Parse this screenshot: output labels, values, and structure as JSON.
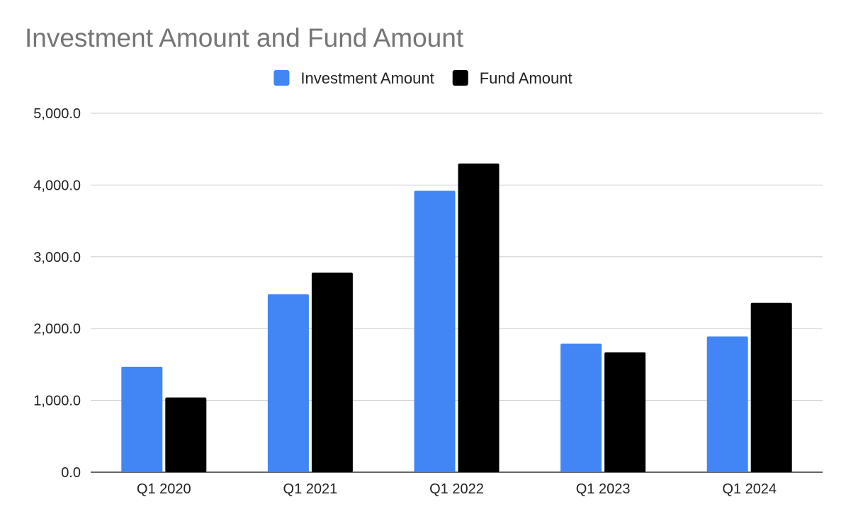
{
  "chart_data": {
    "type": "bar",
    "title": "Investment Amount and Fund Amount",
    "categories": [
      "Q1 2020",
      "Q1 2021",
      "Q1 2022",
      "Q1 2023",
      "Q1 2024"
    ],
    "series": [
      {
        "name": "Investment Amount",
        "color": "#4285f4",
        "values": [
          1470,
          2480,
          3920,
          1790,
          1890
        ]
      },
      {
        "name": "Fund Amount",
        "color": "#000000",
        "values": [
          1040,
          2780,
          4300,
          1670,
          2360
        ]
      }
    ],
    "ylim": [
      0,
      5000
    ],
    "yticks": [
      "0.0",
      "1,000.0",
      "2,000.0",
      "3,000.0",
      "4,000.0",
      "5,000.0"
    ],
    "ytick_values": [
      0,
      1000,
      2000,
      3000,
      4000,
      5000
    ],
    "grid": true,
    "legend_position": "top"
  }
}
